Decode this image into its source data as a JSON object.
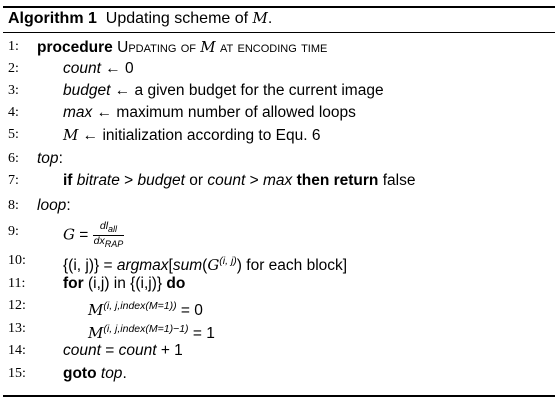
{
  "title": {
    "label": "Algorithm 1",
    "text": "Updating scheme of ",
    "var": "M",
    "end": "."
  },
  "lines": [
    {
      "n": "1:",
      "kw": "procedure",
      "rest1": " Updating of ",
      "var": "M",
      "rest2": " at encoding time"
    },
    {
      "n": "2:",
      "lhs": "count",
      "arrow": " ← ",
      "rhs": "0"
    },
    {
      "n": "3:",
      "lhs": "budget",
      "arrow": " ← ",
      "rhs": "a given budget for the current image"
    },
    {
      "n": "4:",
      "lhs": "max",
      "arrow": " ← ",
      "rhs": "maximum number of allowed loops"
    },
    {
      "n": "5:",
      "lhs": "M",
      "arrow": " ← ",
      "rhs": "initialization according to Equ. 6"
    },
    {
      "n": "6:",
      "label": "top",
      "colon": ":"
    },
    {
      "n": "7:",
      "kw1": "if",
      "a": "bitrate",
      "gt1": " > ",
      "b": "budget",
      "or": " or ",
      "c": "count",
      "gt2": " > ",
      "d": "max",
      "kw2": " then return",
      "val": " false"
    },
    {
      "n": "8:",
      "label": "loop",
      "colon": ":"
    },
    {
      "n": "9:",
      "lhs": "G",
      "eq": " = ",
      "num": "dl",
      "num_sub": "all",
      "den": "dx",
      "den_sub": "RAP"
    },
    {
      "n": "10:",
      "pre": "{(i, j)} = ",
      "fn": "argmax",
      "mid": "[",
      "fn2": "sum",
      "open": "(",
      "g": "G",
      "gsup": "(i, j)",
      "close": ")",
      "tail": " for each block]"
    },
    {
      "n": "11:",
      "kw1": "for",
      "mid": " (i,j) in {(i,j)} ",
      "kw2": "do"
    },
    {
      "n": "12:",
      "m": "M",
      "msup": "(i, j,index(M=1))",
      "rhs": " = 0"
    },
    {
      "n": "13:",
      "m": "M",
      "msup": "(i, j,index(M=1)−1)",
      "rhs": " = 1"
    },
    {
      "n": "14:",
      "a": "count",
      "mid": " = ",
      "b": "count",
      "tail": " + 1"
    },
    {
      "n": "15:",
      "kw": "goto",
      "target": " top",
      "end": "."
    }
  ]
}
